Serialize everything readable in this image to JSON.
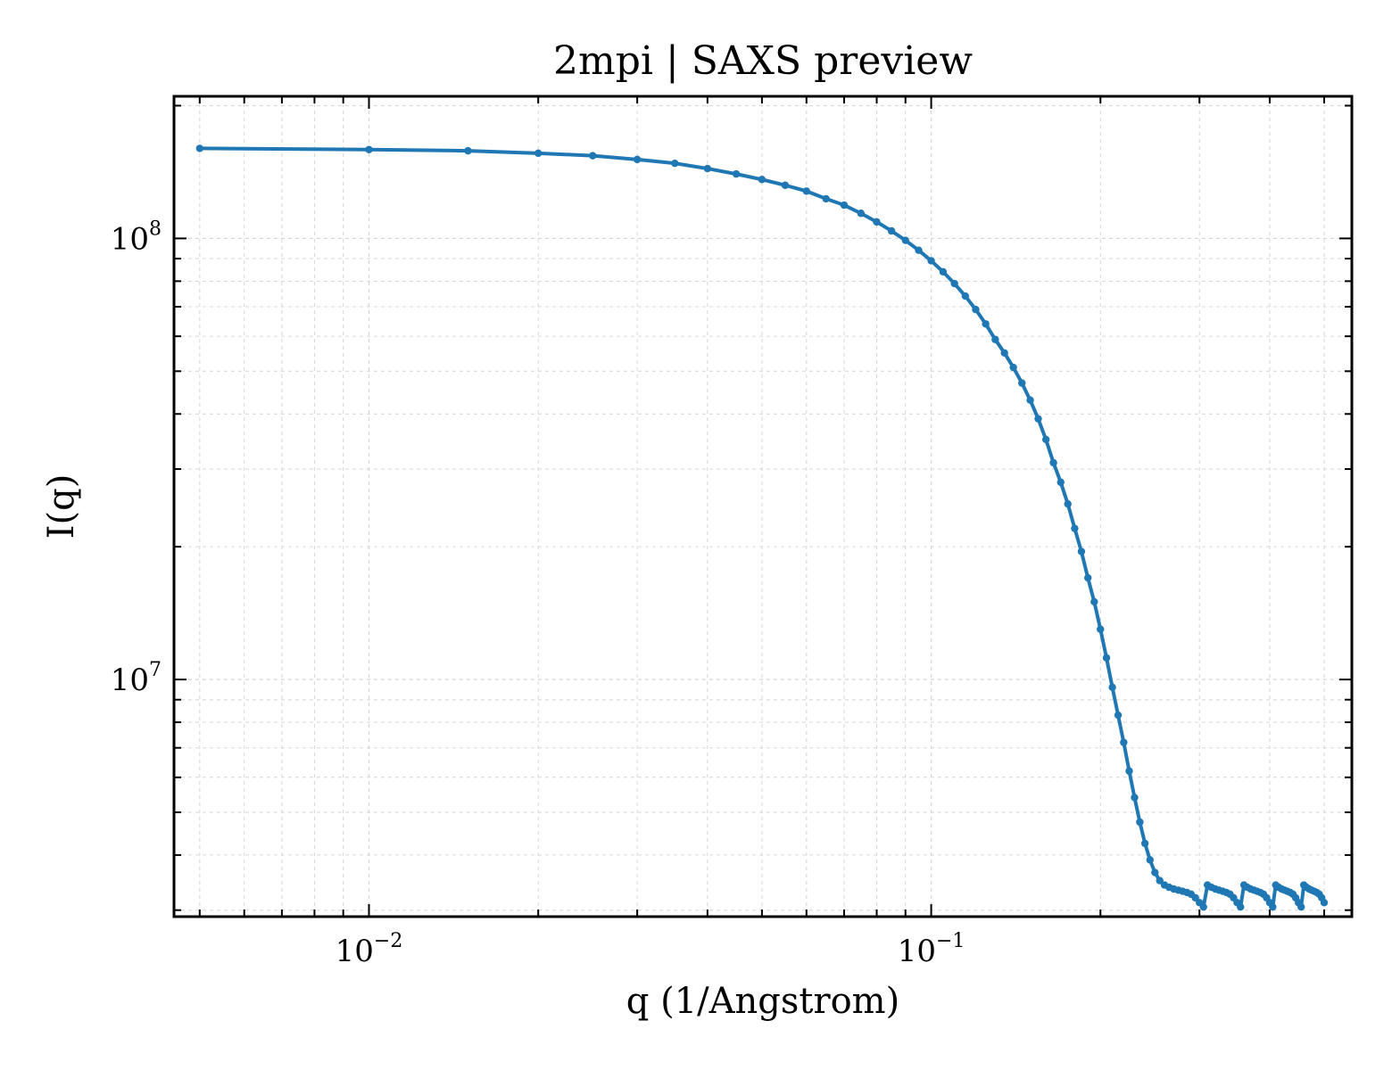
{
  "chart_data": {
    "type": "line",
    "title": "2mpi | SAXS preview",
    "xlabel": "q (1/Angstrom)",
    "ylabel": "I(q)",
    "x_scale": "log",
    "y_scale": "log",
    "xlim": [
      0.0045,
      0.56
    ],
    "ylim": [
      2900000.0,
      210000000.0
    ],
    "x_ticks": [
      {
        "value": 0.01,
        "base": "10",
        "exp": "−2"
      },
      {
        "value": 0.1,
        "base": "10",
        "exp": "−1"
      }
    ],
    "y_ticks": [
      {
        "value": 10000000.0,
        "base": "10",
        "exp": "7"
      },
      {
        "value": 100000000.0,
        "base": "10",
        "exp": "8"
      }
    ],
    "grid": true,
    "line_color": "#1f77b4",
    "series": [
      {
        "name": "",
        "x": [
          0.005,
          0.01,
          0.015,
          0.02,
          0.025,
          0.03,
          0.035,
          0.04,
          0.045,
          0.05,
          0.055,
          0.06,
          0.065,
          0.07,
          0.075,
          0.08,
          0.085,
          0.09,
          0.095,
          0.1,
          0.105,
          0.11,
          0.115,
          0.12,
          0.125,
          0.13,
          0.135,
          0.14,
          0.145,
          0.15,
          0.155,
          0.16,
          0.165,
          0.17,
          0.175,
          0.18,
          0.185,
          0.19,
          0.195,
          0.2,
          0.205,
          0.21,
          0.215,
          0.22,
          0.225,
          0.23,
          0.235,
          0.24,
          0.245,
          0.25,
          0.255,
          0.26,
          0.265,
          0.27,
          0.275,
          0.28,
          0.285,
          0.29,
          0.295,
          0.3,
          0.305,
          0.31,
          0.315,
          0.32,
          0.325,
          0.33,
          0.335,
          0.34,
          0.345,
          0.35,
          0.355,
          0.36,
          0.365,
          0.37,
          0.375,
          0.38,
          0.385,
          0.39,
          0.395,
          0.4,
          0.405,
          0.41,
          0.415,
          0.42,
          0.425,
          0.43,
          0.435,
          0.44,
          0.445,
          0.45,
          0.455,
          0.46,
          0.465,
          0.47,
          0.475,
          0.48,
          0.485,
          0.49,
          0.495,
          0.5
        ],
        "y": [
          160000000.0,
          159000000.0,
          158000000.0,
          156000000.0,
          154000000.0,
          151000000.0,
          148000000.0,
          144000000.0,
          140000000.0,
          136000000.0,
          132000000.0,
          128000000.0,
          123000000.0,
          119000000.0,
          114000000.0,
          109000000.0,
          104000000.0,
          99000000.0,
          94000000.0,
          89000000.0,
          84000000.0,
          79000000.0,
          74000000.0,
          69000000.0,
          64000000.0,
          59000000.0,
          55000000.0,
          51000000.0,
          47000000.0,
          43000000.0,
          39000000.0,
          35000000.0,
          31000000.0,
          28000000.0,
          25000000.0,
          22000000.0,
          19500000.0,
          17000000.0,
          15000000.0,
          13000000.0,
          11200000.0,
          9600000.0,
          8300000.0,
          7200000.0,
          6200000.0,
          5400000.0,
          4750000.0,
          4250000.0,
          3900000.0,
          3650000.0,
          3500000.0,
          3420000.0,
          3380000.0,
          3350000.0,
          3330000.0,
          3310000.0,
          3290000.0,
          3260000.0,
          3200000.0,
          3120000.0,
          3050000.0,
          3420000.0,
          3380000.0,
          3350000.0,
          3330000.0,
          3310000.0,
          3290000.0,
          3260000.0,
          3200000.0,
          3120000.0,
          3050000.0,
          3420000.0,
          3380000.0,
          3350000.0,
          3330000.0,
          3310000.0,
          3290000.0,
          3260000.0,
          3200000.0,
          3120000.0,
          3050000.0,
          3420000.0,
          3380000.0,
          3350000.0,
          3330000.0,
          3310000.0,
          3290000.0,
          3260000.0,
          3200000.0,
          3120000.0,
          3050000.0,
          3420000.0,
          3380000.0,
          3350000.0,
          3330000.0,
          3310000.0,
          3290000.0,
          3260000.0,
          3200000.0,
          3120000.0
        ]
      }
    ]
  }
}
